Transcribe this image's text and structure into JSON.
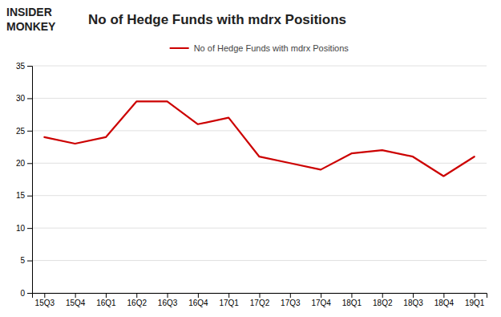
{
  "chart_data": {
    "type": "line",
    "title": "No of Hedge Funds with mdrx Positions",
    "annotations": [
      "INSIDER",
      "MONKEY"
    ],
    "categories": [
      "15Q3",
      "15Q4",
      "16Q1",
      "16Q2",
      "16Q3",
      "16Q4",
      "17Q1",
      "17Q2",
      "17Q3",
      "17Q4",
      "18Q1",
      "18Q2",
      "18Q3",
      "18Q4",
      "19Q1"
    ],
    "series": [
      {
        "name": "No of Hedge Funds with mdrx Positions",
        "color": "#cc0000",
        "values": [
          24,
          23,
          24,
          29.5,
          29.5,
          26,
          27,
          21,
          20,
          19,
          21.5,
          22,
          21,
          18,
          21
        ]
      }
    ],
    "ylim": [
      0,
      35
    ],
    "yticks": [
      0,
      5,
      10,
      15,
      20,
      25,
      30,
      35
    ],
    "grid": true,
    "legend": "top"
  }
}
